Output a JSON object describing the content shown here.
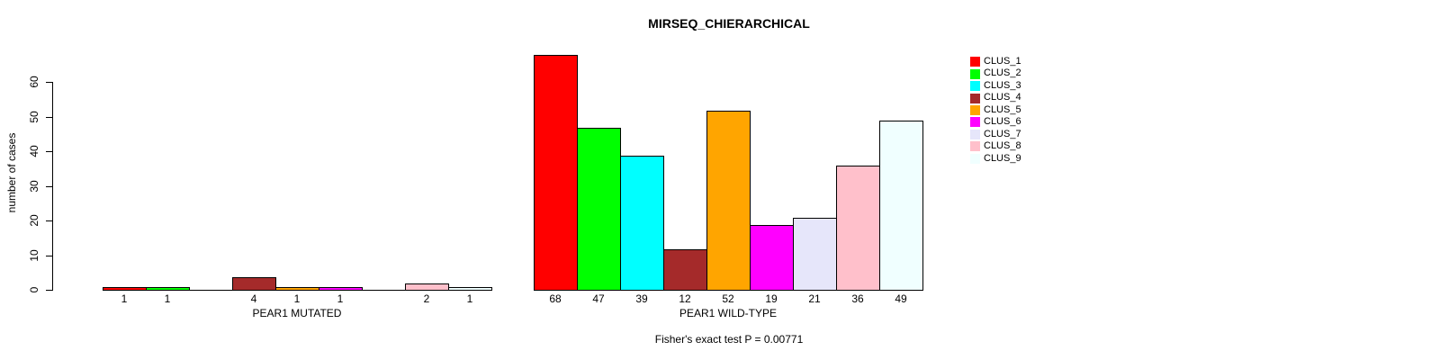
{
  "chart_data": {
    "type": "bar",
    "title": "MIRSEQ_CHIERARCHICAL",
    "ylabel": "number of cases",
    "ylim": [
      0,
      60
    ],
    "yticks": [
      0,
      10,
      20,
      30,
      40,
      50,
      60
    ],
    "grid": false,
    "legend_position": "right",
    "categories": [
      "PEAR1 MUTATED",
      "PEAR1 WILD-TYPE"
    ],
    "series": [
      {
        "name": "CLUS_1",
        "color": "#FF0000",
        "values": [
          1,
          68
        ]
      },
      {
        "name": "CLUS_2",
        "color": "#00FF00",
        "values": [
          1,
          47
        ]
      },
      {
        "name": "CLUS_3",
        "color": "#00FFFF",
        "values": [
          0,
          39
        ]
      },
      {
        "name": "CLUS_4",
        "color": "#A52A2A",
        "values": [
          4,
          12
        ]
      },
      {
        "name": "CLUS_5",
        "color": "#FFA500",
        "values": [
          1,
          52
        ]
      },
      {
        "name": "CLUS_6",
        "color": "#FF00FF",
        "values": [
          1,
          19
        ]
      },
      {
        "name": "CLUS_7",
        "color": "#E6E6FA",
        "values": [
          0,
          21
        ]
      },
      {
        "name": "CLUS_8",
        "color": "#FFC0CB",
        "values": [
          2,
          36
        ]
      },
      {
        "name": "CLUS_9",
        "color": "#F0FFFF",
        "values": [
          1,
          49
        ]
      }
    ],
    "annotation": "Fisher's exact test P = 0.00771"
  }
}
